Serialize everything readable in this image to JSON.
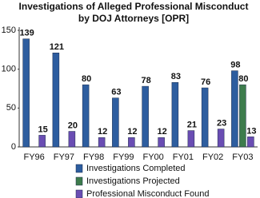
{
  "chart_data": {
    "type": "bar",
    "title": "Investigations of Alleged Professional Misconduct by DOJ Attorneys [OPR]",
    "categories": [
      "FY96",
      "FY97",
      "FY98",
      "FY99",
      "FY00",
      "FY01",
      "FY02",
      "FY03"
    ],
    "series": [
      {
        "name": "Investigations Completed",
        "color": "#2d5d9f",
        "values": [
          139,
          121,
          80,
          63,
          78,
          83,
          76,
          98
        ]
      },
      {
        "name": "Investigations Projected",
        "color": "#3d7c4c",
        "values": [
          null,
          null,
          null,
          null,
          null,
          null,
          null,
          80
        ]
      },
      {
        "name": "Professional Misconduct Found",
        "color": "#6a4db3",
        "values": [
          15,
          20,
          12,
          12,
          12,
          21,
          23,
          13
        ]
      }
    ],
    "ylim": [
      0,
      150
    ],
    "yticks": [
      0,
      50,
      100,
      150
    ],
    "grid": false
  }
}
